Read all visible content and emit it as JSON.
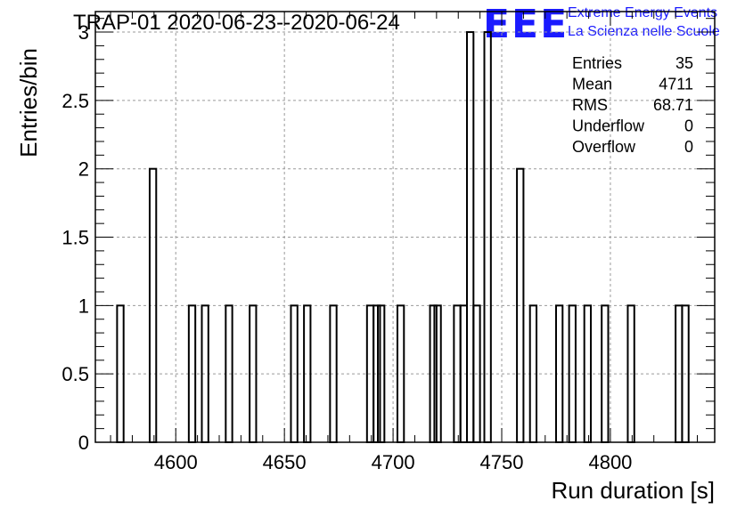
{
  "chart_data": {
    "type": "bar",
    "title": "TRAP-01 2020-06-23--2020-06-24",
    "xlabel": "Run duration [s]",
    "ylabel": "Entries/bin",
    "xlim": [
      4563,
      4848
    ],
    "ylim": [
      0,
      3.15
    ],
    "bin_width": 3,
    "grid": true,
    "x_ticks": [
      4600,
      4650,
      4700,
      4750,
      4800
    ],
    "y_ticks": [
      0,
      0.5,
      1,
      1.5,
      2,
      2.5,
      3
    ],
    "x_tick_labels": [
      "4600",
      "4650",
      "4700",
      "4750",
      "4800"
    ],
    "y_tick_labels": [
      "0",
      "0.5",
      "1",
      "1.5",
      "2",
      "2.5",
      "3"
    ],
    "bins": [
      {
        "x": 4573,
        "count": 1
      },
      {
        "x": 4588,
        "count": 2
      },
      {
        "x": 4606,
        "count": 1
      },
      {
        "x": 4612,
        "count": 1
      },
      {
        "x": 4623,
        "count": 1
      },
      {
        "x": 4634,
        "count": 1
      },
      {
        "x": 4653,
        "count": 1
      },
      {
        "x": 4659,
        "count": 1
      },
      {
        "x": 4671,
        "count": 1
      },
      {
        "x": 4688,
        "count": 1
      },
      {
        "x": 4691,
        "count": 1
      },
      {
        "x": 4693,
        "count": 1
      },
      {
        "x": 4702,
        "count": 1
      },
      {
        "x": 4717,
        "count": 1
      },
      {
        "x": 4719,
        "count": 1
      },
      {
        "x": 4728,
        "count": 1
      },
      {
        "x": 4731,
        "count": 1
      },
      {
        "x": 4734,
        "count": 3
      },
      {
        "x": 4737,
        "count": 1
      },
      {
        "x": 4742,
        "count": 3
      },
      {
        "x": 4757,
        "count": 2
      },
      {
        "x": 4763,
        "count": 1
      },
      {
        "x": 4775,
        "count": 1
      },
      {
        "x": 4781,
        "count": 1
      },
      {
        "x": 4788,
        "count": 1
      },
      {
        "x": 4796,
        "count": 1
      },
      {
        "x": 4808,
        "count": 1
      },
      {
        "x": 4830,
        "count": 1
      },
      {
        "x": 4833,
        "count": 1
      }
    ],
    "stats": [
      {
        "label": "Entries",
        "value": "35"
      },
      {
        "label": "Mean",
        "value": "4711"
      },
      {
        "label": "RMS",
        "value": "68.71"
      },
      {
        "label": "Underflow",
        "value": "0"
      },
      {
        "label": "Overflow",
        "value": "0"
      }
    ],
    "logo": {
      "mark": "EEE",
      "line1": "Extreme Energy Events",
      "line2": "La Scienza nelle Scuole",
      "color": "#1a1aff"
    },
    "line_color": "#000000",
    "grid_color": "#9a9a9a"
  }
}
